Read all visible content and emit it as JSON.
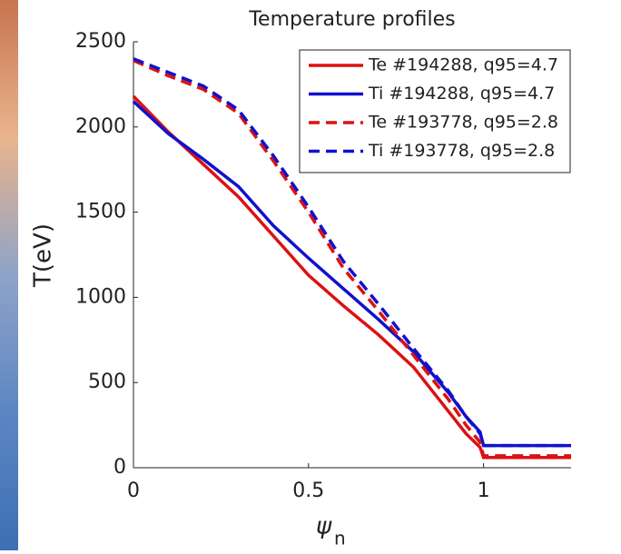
{
  "chart_data": {
    "type": "line",
    "title": "Temperature profiles",
    "ylabel": "T(eV)",
    "xlabel": {
      "symbol": "ψ",
      "subscript": "n"
    },
    "x": [
      0,
      0.1,
      0.2,
      0.3,
      0.4,
      0.5,
      0.6,
      0.7,
      0.8,
      0.9,
      0.95,
      0.99,
      1.0,
      1.25
    ],
    "series": [
      {
        "name": "Te #194288, q95=4.7",
        "color": "#dd1111",
        "dash": false,
        "values": [
          2180,
          1970,
          1780,
          1590,
          1360,
          1130,
          950,
          780,
          590,
          330,
          200,
          120,
          60,
          60
        ]
      },
      {
        "name": "Ti #194288, q95=4.7",
        "color": "#1111cc",
        "dash": false,
        "values": [
          2150,
          1960,
          1810,
          1650,
          1420,
          1230,
          1050,
          870,
          680,
          440,
          300,
          210,
          130,
          130
        ]
      },
      {
        "name": "Te #193778, q95=2.8",
        "color": "#dd1111",
        "dash": true,
        "values": [
          2390,
          2300,
          2220,
          2080,
          1800,
          1500,
          1170,
          920,
          660,
          400,
          250,
          150,
          70,
          70
        ]
      },
      {
        "name": "Ti #193778, q95=2.8",
        "color": "#1111cc",
        "dash": true,
        "values": [
          2400,
          2320,
          2240,
          2100,
          1830,
          1530,
          1210,
          960,
          700,
          450,
          300,
          200,
          130,
          130
        ]
      }
    ],
    "xlim": [
      0,
      1.25
    ],
    "xticks": [
      0,
      0.5,
      1
    ],
    "ylim": [
      0,
      2500
    ],
    "yticks": [
      0,
      500,
      1000,
      1500,
      2000,
      2500
    ],
    "grid": false,
    "legend": "upper right"
  }
}
